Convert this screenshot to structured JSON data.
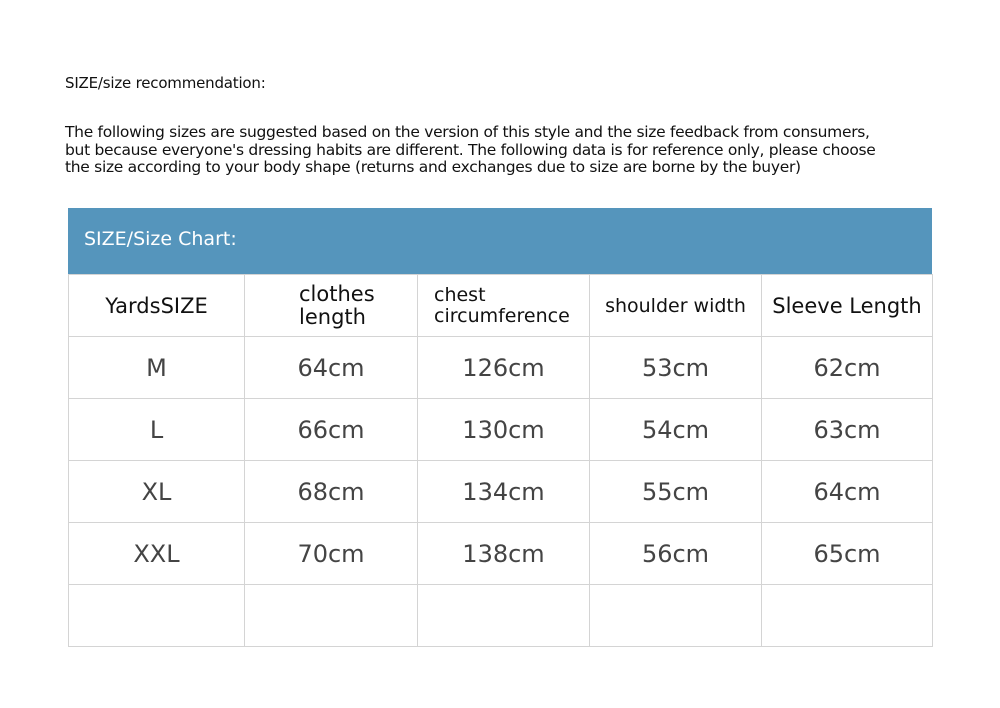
{
  "recommendation_title": "SIZE/size recommendation:",
  "intro_lines": [
    "The following sizes are suggested based on the version of this style and the size feedback from consumers,",
    "but because everyone's dressing habits are different. The following data is for reference only, please choose",
    "the size according to your body shape (returns and exchanges due to size are borne by the buyer)"
  ],
  "chart_title": "SIZE/Size Chart:",
  "header_color": "#5595bc",
  "columns": [
    "YardsSIZE",
    "clothes length",
    "chest circumference",
    "shoulder width",
    "Sleeve Length"
  ],
  "rows": [
    [
      "M",
      "64cm",
      "126cm",
      "53cm",
      "62cm"
    ],
    [
      "L",
      "66cm",
      "130cm",
      "54cm",
      "63cm"
    ],
    [
      "XL",
      "68cm",
      "134cm",
      "55cm",
      "64cm"
    ],
    [
      "XXL",
      "70cm",
      "138cm",
      "56cm",
      "65cm"
    ],
    [
      "",
      "",
      "",
      "",
      ""
    ]
  ]
}
